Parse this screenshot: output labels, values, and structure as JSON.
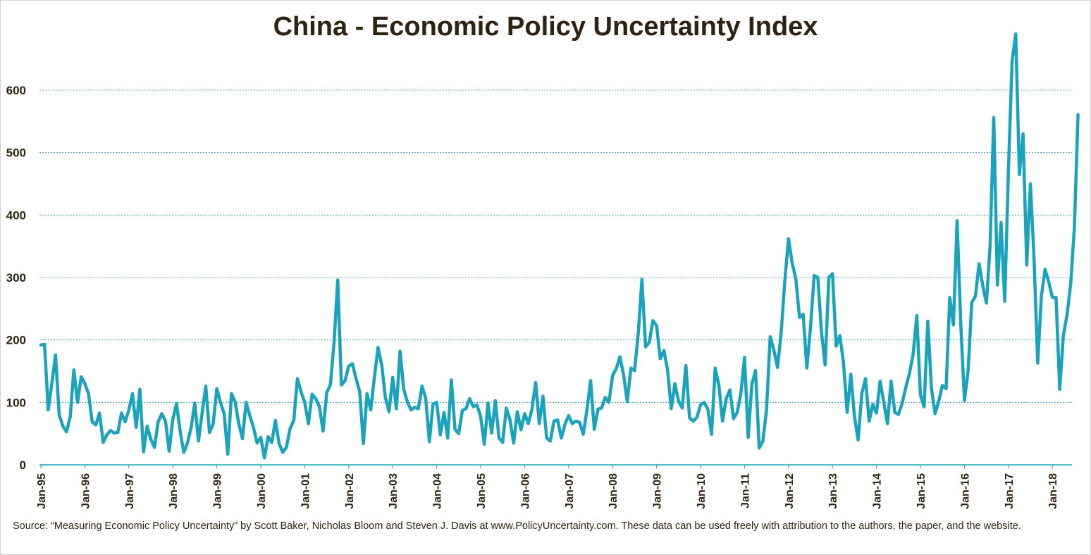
{
  "chart_data": {
    "type": "line",
    "title": "China - Economic Policy Uncertainty Index",
    "xlabel": "",
    "ylabel": "",
    "ylim": [
      0,
      700
    ],
    "yticks": [
      0,
      100,
      200,
      300,
      400,
      500,
      600
    ],
    "xticks": [
      "Jan-95",
      "Jan-96",
      "Jan-97",
      "Jan-98",
      "Jan-99",
      "Jan-00",
      "Jan-01",
      "Jan-02",
      "Jan-03",
      "Jan-04",
      "Jan-05",
      "Jan-06",
      "Jan-07",
      "Jan-08",
      "Jan-09",
      "Jan-10",
      "Jan-11",
      "Jan-12",
      "Jan-13",
      "Jan-14",
      "Jan-15",
      "Jan-16",
      "Jan-17",
      "Jan-18"
    ],
    "grid": true,
    "legend": "none",
    "line_color": "#1ba3bb",
    "grid_color": "#2e86c1",
    "x_start": "1995-01",
    "series": [
      {
        "values": [
          192,
          193,
          88,
          130,
          176,
          80,
          62,
          53,
          77,
          152,
          100,
          141,
          130,
          114,
          69,
          64,
          83,
          36,
          48,
          55,
          51,
          52,
          83,
          69,
          88,
          114,
          60,
          121,
          21,
          62,
          41,
          28,
          69,
          82,
          70,
          22,
          73,
          98,
          54,
          20,
          35,
          60,
          99,
          38,
          83,
          126,
          52,
          65,
          122,
          100,
          82,
          17,
          114,
          101,
          66,
          42,
          100,
          79,
          60,
          35,
          44,
          11,
          45,
          36,
          71,
          34,
          20,
          28,
          58,
          71,
          138,
          117,
          100,
          66,
          113,
          106,
          93,
          54,
          116,
          128,
          196,
          296,
          128,
          135,
          158,
          162,
          138,
          117,
          34,
          114,
          88,
          140,
          188,
          160,
          108,
          85,
          140,
          90,
          182,
          121,
          101,
          88,
          92,
          90,
          126,
          107,
          37,
          97,
          100,
          48,
          84,
          43,
          136,
          57,
          50,
          87,
          90,
          106,
          93,
          96,
          77,
          33,
          99,
          51,
          103,
          43,
          36,
          91,
          72,
          35,
          85,
          56,
          82,
          66,
          89,
          132,
          66,
          110,
          43,
          38,
          70,
          72,
          43,
          65,
          79,
          66,
          70,
          68,
          49,
          88,
          135,
          57,
          89,
          91,
          108,
          100,
          143,
          154,
          173,
          144,
          101,
          155,
          151,
          210,
          297,
          189,
          196,
          231,
          223,
          170,
          183,
          152,
          90,
          130,
          102,
          91,
          159,
          75,
          70,
          76,
          96,
          100,
          89,
          49,
          155,
          127,
          70,
          106,
          120,
          74,
          84,
          114,
          172,
          44,
          129,
          151,
          27,
          38,
          88,
          205,
          184,
          156,
          212,
          295,
          362,
          323,
          298,
          236,
          241,
          155,
          220,
          303,
          300,
          212,
          160,
          300,
          306,
          190,
          207,
          164,
          84,
          145,
          77,
          40,
          114,
          138,
          70,
          97,
          83,
          134,
          100,
          66,
          134,
          84,
          81,
          98,
          124,
          146,
          177,
          239,
          112,
          93,
          230,
          123,
          82,
          102,
          127,
          122,
          268,
          224,
          391,
          227,
          103,
          150,
          260,
          270,
          322,
          287,
          259,
          350,
          556,
          288,
          388,
          262,
          470,
          646,
          690,
          465,
          530,
          320,
          450,
          330,
          163,
          270,
          313,
          293,
          268,
          268,
          121,
          207,
          240,
          290,
          380,
          561
        ]
      }
    ]
  },
  "footer": {
    "source_text": "Source: “Measuring Economic Policy Uncertainty” by Scott Baker, Nicholas Bloom and Steven J. Davis at www.PolicyUncertainty.com.  These data can be used freely with attribution to the authors, the paper, and the website."
  }
}
